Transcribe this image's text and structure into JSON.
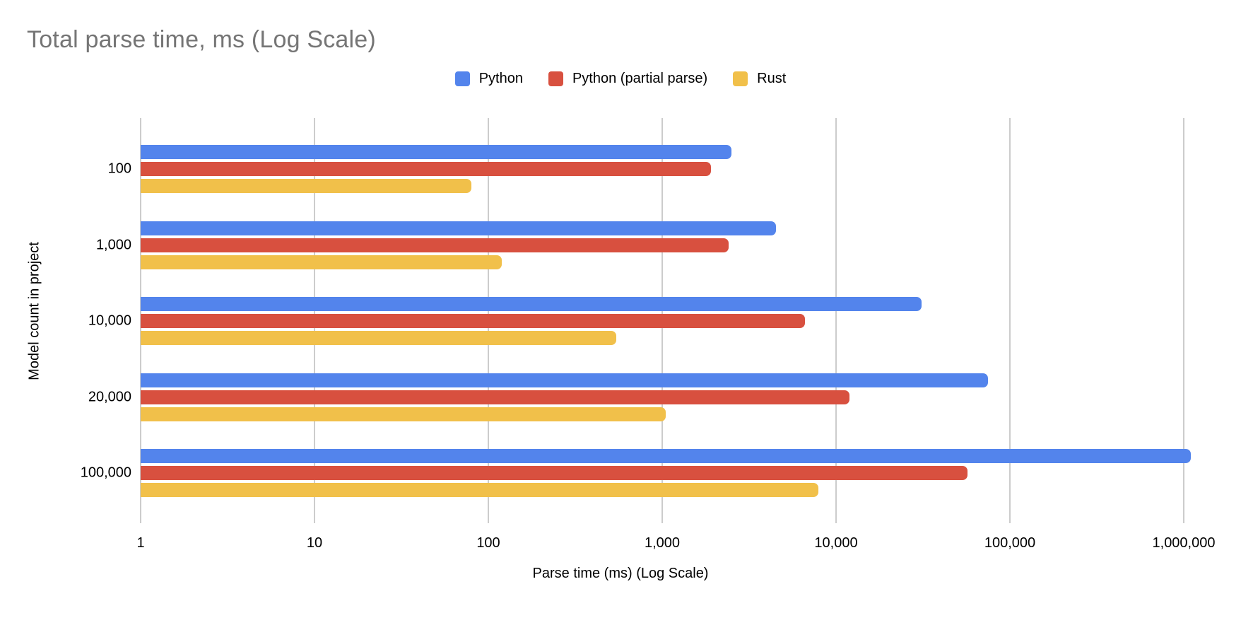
{
  "chart_data": {
    "type": "bar",
    "orientation": "horizontal",
    "title": "Total parse time, ms (Log Scale)",
    "xlabel": "Parse time (ms) (Log Scale)",
    "ylabel": "Model count in project",
    "x_scale": "log",
    "xlim": [
      1,
      2100000
    ],
    "grid": "vertical-log-decades",
    "gridline_color": "#cccccc",
    "legend_position": "top",
    "x_ticks": [
      {
        "value": 1,
        "label": "1"
      },
      {
        "value": 10,
        "label": "10"
      },
      {
        "value": 100,
        "label": "100"
      },
      {
        "value": 1000,
        "label": "1,000"
      },
      {
        "value": 10000,
        "label": "10,000"
      },
      {
        "value": 100000,
        "label": "100,000"
      },
      {
        "value": 1000000,
        "label": "1,000,000"
      }
    ],
    "categories": [
      "100",
      "1,000",
      "10,000",
      "20,000",
      "100,000"
    ],
    "series": [
      {
        "name": "Python",
        "color": "#5384EC",
        "values": [
          2500,
          4500,
          31000,
          75000,
          1100000
        ]
      },
      {
        "name": "Python (partial parse)",
        "color": "#D8503F",
        "values": [
          1900,
          2400,
          6600,
          12000,
          57000
        ]
      },
      {
        "name": "Rust",
        "color": "#F1C04A",
        "values": [
          80,
          120,
          545,
          1050,
          7900
        ]
      }
    ]
  },
  "colors": {
    "title_text": "#757575",
    "axis_text": "#000000",
    "background": "#ffffff"
  }
}
